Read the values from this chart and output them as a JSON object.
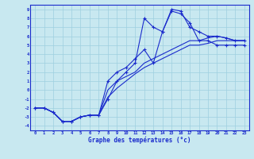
{
  "xlabel": "Graphe des températures (°c)",
  "xlim": [
    -0.5,
    23.5
  ],
  "ylim": [
    -4.5,
    9.5
  ],
  "xticks": [
    0,
    1,
    2,
    3,
    4,
    5,
    6,
    7,
    8,
    9,
    10,
    11,
    12,
    13,
    14,
    15,
    16,
    17,
    18,
    19,
    20,
    21,
    22,
    23
  ],
  "yticks": [
    -4,
    -3,
    -2,
    -1,
    0,
    1,
    2,
    3,
    4,
    5,
    6,
    7,
    8,
    9
  ],
  "bg_color": "#c8e8f0",
  "grid_color": "#9ecfdf",
  "line_color": "#1a2bcc",
  "curve1_x": [
    0,
    1,
    2,
    3,
    4,
    5,
    6,
    7,
    8,
    9,
    10,
    11,
    12,
    13,
    14,
    15,
    16,
    17,
    18,
    19,
    20,
    21,
    22,
    23
  ],
  "curve1_y": [
    -2,
    -2,
    -2.5,
    -3.5,
    -3.5,
    -3.0,
    -2.8,
    -2.8,
    -0.8,
    0.2,
    1.0,
    1.8,
    2.5,
    3.0,
    3.5,
    4.0,
    4.5,
    5.0,
    5.0,
    5.2,
    5.5,
    5.5,
    5.5,
    5.5
  ],
  "curve2_x": [
    0,
    1,
    2,
    3,
    4,
    5,
    6,
    7,
    8,
    9,
    10,
    11,
    12,
    13,
    14,
    15,
    16,
    17,
    18,
    19,
    20,
    21,
    22,
    23
  ],
  "curve2_y": [
    -2,
    -2,
    -2.5,
    -3.5,
    -3.5,
    -3.0,
    -2.8,
    -2.8,
    0.0,
    1.0,
    1.5,
    2.0,
    3.0,
    3.5,
    4.0,
    4.5,
    5.0,
    5.5,
    5.5,
    5.8,
    6.0,
    5.8,
    5.5,
    5.5
  ],
  "curve3_x": [
    0,
    1,
    2,
    3,
    4,
    5,
    6,
    7,
    8,
    9,
    10,
    11,
    12,
    13,
    14,
    15,
    16,
    17,
    18,
    19,
    20,
    21,
    22,
    23
  ],
  "curve3_y": [
    -2,
    -2,
    -2.5,
    -3.5,
    -3.5,
    -3.0,
    -2.8,
    -2.8,
    1.0,
    2.0,
    2.5,
    3.5,
    4.5,
    3.0,
    6.5,
    9.0,
    8.8,
    7.0,
    6.5,
    6.0,
    6.0,
    5.8,
    5.5,
    5.5
  ],
  "curve4_x": [
    0,
    1,
    2,
    3,
    4,
    5,
    6,
    7,
    8,
    9,
    10,
    11,
    12,
    13,
    14,
    15,
    16,
    17,
    18,
    19,
    20,
    21,
    22,
    23
  ],
  "curve4_y": [
    -2,
    -2,
    -2.5,
    -3.5,
    -3.5,
    -3.0,
    -2.8,
    -2.8,
    -1.0,
    1.0,
    2.0,
    3.0,
    8.0,
    7.0,
    6.5,
    8.8,
    8.5,
    7.5,
    5.5,
    5.5,
    5.0,
    5.0,
    5.0,
    5.0
  ]
}
